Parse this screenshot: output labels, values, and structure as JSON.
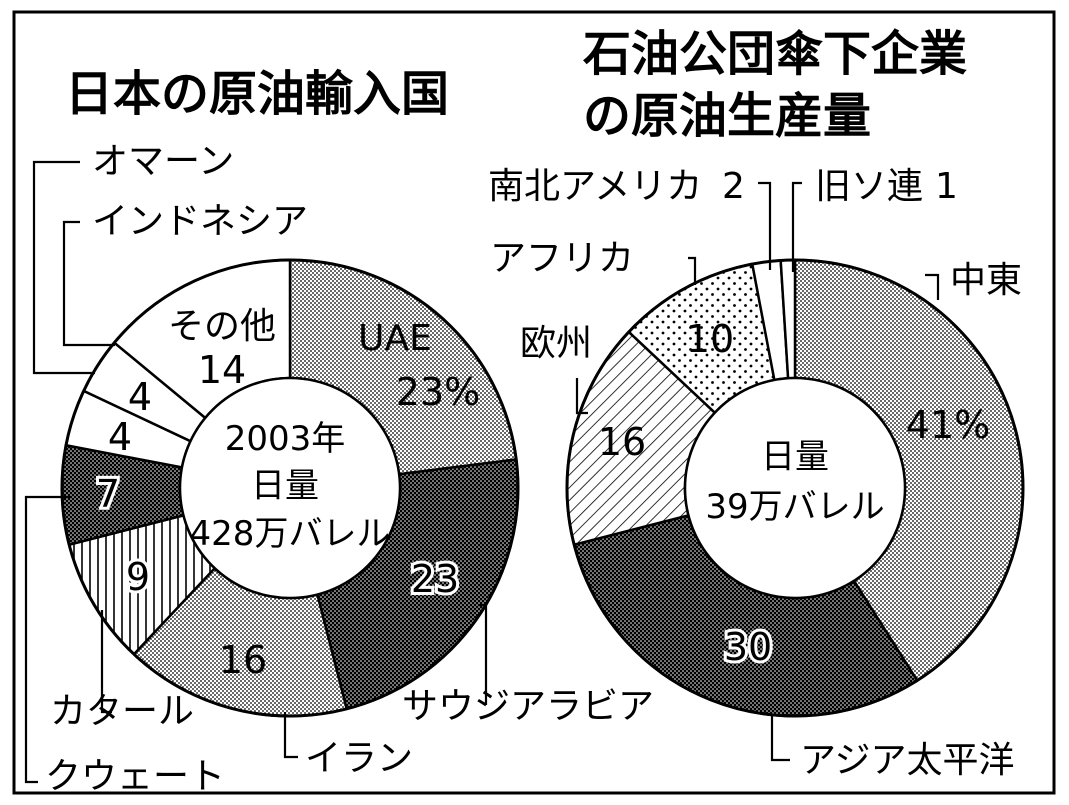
{
  "chart_data": [
    {
      "type": "pie",
      "title": "日本の原油輸入国",
      "center_lines": [
        "2003年",
        "日量",
        "428万バレル"
      ],
      "slices": [
        {
          "name": "UAE",
          "value": 23,
          "value_label": "23%",
          "pattern": "light-dots"
        },
        {
          "name": "サウジアラビア",
          "value": 23,
          "value_label": "23",
          "pattern": "dark-dots"
        },
        {
          "name": "イラン",
          "value": 16,
          "value_label": "16",
          "pattern": "light-dots"
        },
        {
          "name": "カタール",
          "value": 9,
          "value_label": "9",
          "pattern": "vertical-lines"
        },
        {
          "name": "クウェート",
          "value": 7,
          "value_label": "7",
          "pattern": "dark-dots"
        },
        {
          "name": "インドネシア",
          "value": 4,
          "value_label": "4",
          "pattern": "white"
        },
        {
          "name": "オマーン",
          "value": 4,
          "value_label": "4",
          "pattern": "white"
        },
        {
          "name": "その他",
          "value": 14,
          "value_label": "14",
          "pattern": "white"
        }
      ]
    },
    {
      "type": "pie",
      "title": "石油公団傘下企業の原油生産量",
      "title_lines": [
        "石油公団傘下企業",
        "の原油生産量"
      ],
      "center_lines": [
        "日量",
        "39万バレル"
      ],
      "slices": [
        {
          "name": "中東",
          "value": 41,
          "value_label": "41%",
          "pattern": "light-dots"
        },
        {
          "name": "アジア太平洋",
          "value": 30,
          "value_label": "30",
          "pattern": "dark-dots"
        },
        {
          "name": "欧州",
          "value": 16,
          "value_label": "16",
          "pattern": "diagonal-lines"
        },
        {
          "name": "アフリカ",
          "value": 10,
          "value_label": "10",
          "pattern": "sparse-dots"
        },
        {
          "name": "南北アメリカ",
          "value": 2,
          "value_label": "2",
          "pattern": "white"
        },
        {
          "name": "旧ソ連",
          "value": 1,
          "value_label": "1",
          "pattern": "white"
        }
      ]
    }
  ]
}
